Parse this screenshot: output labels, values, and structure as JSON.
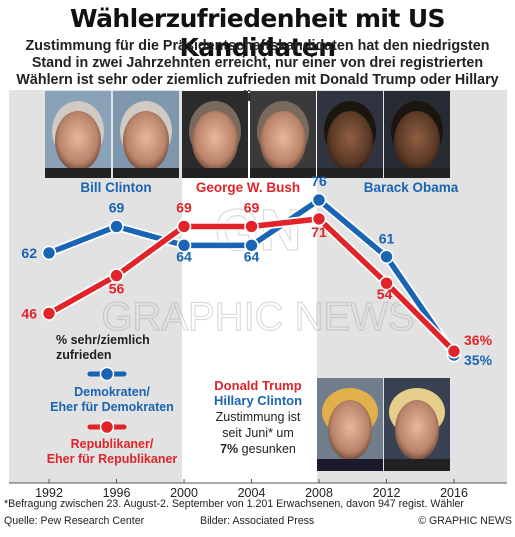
{
  "title": "Wählerzufriedenheit mit US Kandidaten",
  "subtitle": "Zustimmung für die Präsidentschaftskandidaten hat den niedrigsten Stand in zwei Jahrzehnten erreicht, nur einer von drei registrierten Wählern ist sehr oder ziemlich zufrieden mit Donald Trump oder Hillary Clinton",
  "colors": {
    "democrat": "#1a64b4",
    "republican": "#e0242a",
    "band": "#e2e2e2"
  },
  "photos": [
    "Bill Clinton",
    "Bill Clinton",
    "George W. Bush",
    "George W. Bush",
    "Barack Obama",
    "Barack Obama",
    "Donald Trump",
    "Hillary Clinton"
  ],
  "candidates": [
    {
      "name": "Bill Clinton",
      "color": "#1a64b4"
    },
    {
      "name": "George W. Bush",
      "color": "#e0242a"
    },
    {
      "name": "Barack Obama",
      "color": "#1a64b4"
    }
  ],
  "chart_data": {
    "type": "line",
    "x": [
      1992,
      1996,
      2000,
      2004,
      2008,
      2012,
      2016
    ],
    "series": [
      {
        "name": "Demokraten/ Eher für Demokraten",
        "values": [
          62,
          69,
          64,
          64,
          76,
          61,
          35
        ],
        "labels": [
          "62",
          "69",
          "64",
          "64",
          "76",
          "61",
          "35%"
        ],
        "color": "#1a64b4"
      },
      {
        "name": "Republikaner/ Eher für Republikaner",
        "values": [
          46,
          56,
          69,
          69,
          71,
          54,
          36
        ],
        "labels": [
          "46",
          "56",
          "69",
          "69",
          "71",
          "54",
          "36%"
        ],
        "color": "#e0242a"
      }
    ],
    "ylim": [
      30,
      80
    ],
    "ylabel": "% sehr/ziemlich zufrieden",
    "grid": false,
    "legend_position": "left"
  },
  "legend": {
    "ylabel_line1": "% sehr/ziemlich",
    "ylabel_line2": "zufrieden",
    "dem_line1": "Demokraten/",
    "dem_line2": "Eher für Demokraten",
    "rep_line1": "Republikaner/",
    "rep_line2": "Eher für Republikaner"
  },
  "annotation": {
    "trump": "Donald Trump",
    "clinton": "Hillary Clinton",
    "line1": "Zustimmung ist",
    "line2": "seit Juni* um",
    "value": "7%",
    "line3_suffix": "gesunken"
  },
  "watermark": {
    "logo": "GN",
    "text": "GRAPHIC NEWS"
  },
  "footnote": "*Befragung zwischen 23. August-2. September von 1.201 Erwachsenen, davon 947 regist. Wähler",
  "credits": {
    "source": "Quelle: Pew Research Center",
    "pictures": "Bilder: Associated Press",
    "copyright": "© GRAPHIC NEWS"
  }
}
